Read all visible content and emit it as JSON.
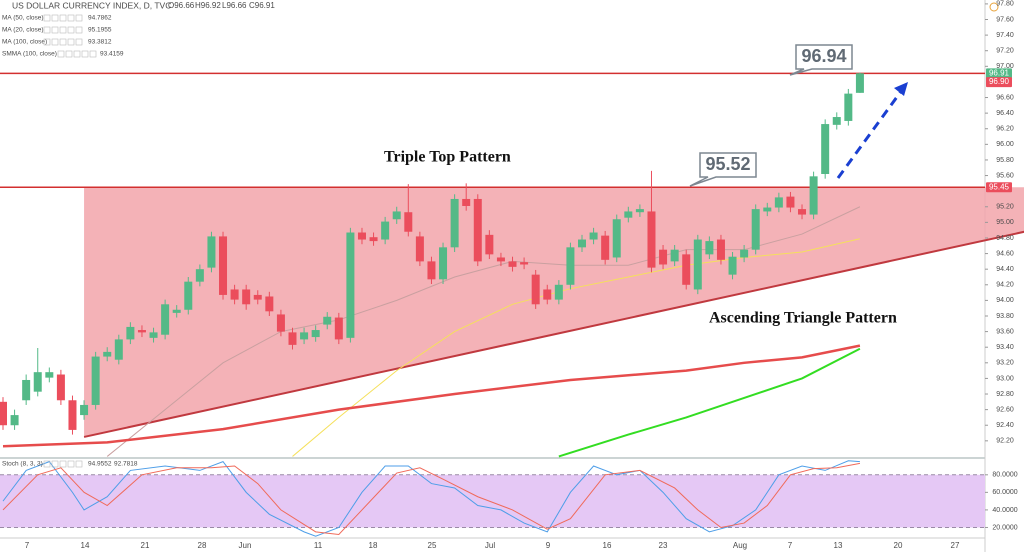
{
  "chart_data": {
    "type": "candlestick",
    "title": "US DOLLAR CURRENCY INDEX, D, TVC",
    "ohlc_labels": [
      {
        "value": 96.66,
        "label": "O96.66"
      },
      {
        "value": 96.92,
        "label": "H96.92"
      },
      {
        "value": 96.66,
        "label": "L96.66"
      },
      {
        "value": 96.91,
        "label": "C96.91"
      }
    ],
    "up_color": "#53b987",
    "down_color": "#eb4d5c",
    "open": [
      92.7,
      92.4,
      92.72,
      92.83,
      93.01,
      93.05,
      92.72,
      92.53,
      92.66,
      93.28,
      93.24,
      93.5,
      93.62,
      93.52,
      93.56,
      93.84,
      93.88,
      94.24,
      94.42,
      94.82,
      94.14,
      94.14,
      94.07,
      94.05,
      93.82,
      93.59,
      93.5,
      93.53,
      93.69,
      93.78,
      93.52,
      94.87,
      94.81,
      94.78,
      95.04,
      95.13,
      94.82,
      94.5,
      94.27,
      94.68,
      95.3,
      95.3,
      94.84,
      94.55,
      94.5,
      94.49,
      94.33,
      94.14,
      94.01,
      94.2,
      94.68,
      94.78,
      94.83,
      94.55,
      95.06,
      95.13,
      95.14,
      94.65,
      94.5,
      94.59,
      94.14,
      94.59,
      94.78,
      94.33,
      94.55,
      94.65,
      95.14,
      95.19,
      95.33,
      95.17,
      95.1,
      95.62,
      96.25,
      96.3,
      96.66
    ],
    "high": [
      92.76,
      92.6,
      93.05,
      93.39,
      93.14,
      93.11,
      92.78,
      92.72,
      93.34,
      93.4,
      93.56,
      93.72,
      93.68,
      93.65,
      94.01,
      93.94,
      94.3,
      94.46,
      94.88,
      94.88,
      94.2,
      94.2,
      94.13,
      94.11,
      93.88,
      93.65,
      93.65,
      93.68,
      93.85,
      93.84,
      94.93,
      94.93,
      94.87,
      95.07,
      95.2,
      95.49,
      94.88,
      94.56,
      94.74,
      95.36,
      95.5,
      95.36,
      94.9,
      94.61,
      94.56,
      94.55,
      94.39,
      94.2,
      94.26,
      94.74,
      94.84,
      94.93,
      94.89,
      95.1,
      95.2,
      95.23,
      95.66,
      94.71,
      94.71,
      94.65,
      94.84,
      94.82,
      94.84,
      94.62,
      94.71,
      95.23,
      95.25,
      95.38,
      95.39,
      95.23,
      95.65,
      96.32,
      96.41,
      96.71,
      96.92
    ],
    "low": [
      92.34,
      92.34,
      92.66,
      92.77,
      92.95,
      92.66,
      92.28,
      92.47,
      92.6,
      93.22,
      93.18,
      93.44,
      93.53,
      93.46,
      93.5,
      93.78,
      93.82,
      94.18,
      94.36,
      94.01,
      93.95,
      93.88,
      93.95,
      93.8,
      93.54,
      93.37,
      93.44,
      93.47,
      93.63,
      93.44,
      93.46,
      94.72,
      94.7,
      94.72,
      94.98,
      94.82,
      94.44,
      94.21,
      94.21,
      94.62,
      95.15,
      94.44,
      94.53,
      94.44,
      94.37,
      94.4,
      93.89,
      93.95,
      93.95,
      94.14,
      94.62,
      94.72,
      94.46,
      94.49,
      95.0,
      95.07,
      94.36,
      94.4,
      94.44,
      94.14,
      94.08,
      94.53,
      94.46,
      94.27,
      94.49,
      94.59,
      95.08,
      95.13,
      95.13,
      95.04,
      95.04,
      95.56,
      96.19,
      96.24,
      96.66
    ],
    "close": [
      92.4,
      92.53,
      92.98,
      93.08,
      93.08,
      92.72,
      92.34,
      92.66,
      93.28,
      93.34,
      93.5,
      93.66,
      93.59,
      93.59,
      93.95,
      93.88,
      94.24,
      94.4,
      94.82,
      94.07,
      94.01,
      93.95,
      94.01,
      93.86,
      93.6,
      93.43,
      93.59,
      93.62,
      93.79,
      93.5,
      94.87,
      94.78,
      94.76,
      95.01,
      95.14,
      94.88,
      94.5,
      94.27,
      94.68,
      95.3,
      95.21,
      94.5,
      94.59,
      94.5,
      94.43,
      94.46,
      93.95,
      94.01,
      94.2,
      94.68,
      94.78,
      94.87,
      94.52,
      95.04,
      95.14,
      95.17,
      94.42,
      94.46,
      94.65,
      94.2,
      94.78,
      94.76,
      94.52,
      94.56,
      94.65,
      95.17,
      95.19,
      95.32,
      95.19,
      95.1,
      95.59,
      96.26,
      96.35,
      96.65,
      96.91
    ],
    "ylim": [
      91.98,
      97.85
    ],
    "yticks": [
      {
        "value": 97.8,
        "label": "97.80"
      },
      {
        "value": 97.6,
        "label": "97.60"
      },
      {
        "value": 97.4,
        "label": "97.40"
      },
      {
        "value": 97.2,
        "label": "97.20"
      },
      {
        "value": 97.0,
        "label": "97.00"
      },
      {
        "value": 96.6,
        "label": "96.60"
      },
      {
        "value": 96.4,
        "label": "96.40"
      },
      {
        "value": 96.2,
        "label": "96.20"
      },
      {
        "value": 96.0,
        "label": "96.00"
      },
      {
        "value": 95.8,
        "label": "95.80"
      },
      {
        "value": 95.6,
        "label": "95.60"
      },
      {
        "value": 95.2,
        "label": "95.20"
      },
      {
        "value": 95.0,
        "label": "95.00"
      },
      {
        "value": 94.8,
        "label": "94.80"
      },
      {
        "value": 94.6,
        "label": "94.60"
      },
      {
        "value": 94.4,
        "label": "94.40"
      },
      {
        "value": 94.2,
        "label": "94.20"
      },
      {
        "value": 94.0,
        "label": "94.00"
      },
      {
        "value": 93.8,
        "label": "93.80"
      },
      {
        "value": 93.6,
        "label": "93.60"
      },
      {
        "value": 93.4,
        "label": "93.40"
      },
      {
        "value": 93.2,
        "label": "93.20"
      },
      {
        "value": 93.0,
        "label": "93.00"
      },
      {
        "value": 92.8,
        "label": "92.80"
      },
      {
        "value": 92.6,
        "label": "92.60"
      },
      {
        "value": 92.4,
        "label": "92.40"
      },
      {
        "value": 92.2,
        "label": "92.20"
      }
    ],
    "price_tags": [
      {
        "value": 96.91,
        "label": "96.91",
        "color": "#53b987"
      },
      {
        "value": 96.9,
        "label": "96.90",
        "color": "#eb4d5c"
      },
      {
        "value": 95.45,
        "label": "95.45",
        "color": "#eb4d5c"
      }
    ],
    "levels": [
      96.91,
      95.45
    ],
    "level_color": "#d32f2f",
    "triangle": {
      "x": [
        8,
        89.2
      ],
      "lower": [
        92.25,
        94.88
      ],
      "upper": 95.45,
      "fill": "#f2a5aa",
      "line_color": "#c0393f"
    },
    "xtick_labels": [
      "7",
      "14",
      "21",
      "28",
      "Jun",
      "11",
      "18",
      "25",
      "Jul",
      "9",
      "16",
      "23",
      "Aug",
      "7",
      "13",
      "20",
      "27"
    ],
    "indicators": [
      {
        "name": "MA (50, close)",
        "value": 94.7862,
        "color": "#f5e05b",
        "width": 1,
        "x": [
          26,
          30,
          35,
          40,
          45,
          50,
          55,
          60,
          65,
          70,
          75
        ],
        "values": [
          92.0,
          92.5,
          93.1,
          93.6,
          93.95,
          94.15,
          94.3,
          94.45,
          94.55,
          94.62,
          94.79
        ]
      },
      {
        "name": "MA (20, close)",
        "value": 95.1955,
        "color": "#c9a0a0",
        "width": 1,
        "x": [
          10,
          15,
          20,
          25,
          30,
          35,
          40,
          45,
          50,
          55,
          60,
          65,
          70,
          75
        ],
        "values": [
          92.0,
          92.6,
          93.2,
          93.6,
          93.75,
          94.0,
          94.3,
          94.5,
          94.45,
          94.45,
          94.65,
          94.65,
          94.85,
          95.2
        ]
      },
      {
        "name": "MA (100, close)",
        "value": 93.3812,
        "color": "#33dd22",
        "width": 2,
        "x": [
          49,
          55,
          60,
          65,
          70,
          75
        ],
        "values": [
          92.0,
          92.28,
          92.5,
          92.75,
          93.0,
          93.38
        ]
      },
      {
        "name": "SMMA (100, close)",
        "value": 93.4159,
        "color": "#e64c4c",
        "width": 2.5,
        "x": [
          1,
          10,
          20,
          30,
          40,
          50,
          60,
          65,
          70,
          75
        ],
        "values": [
          92.13,
          92.18,
          92.35,
          92.6,
          92.8,
          92.98,
          93.1,
          93.2,
          93.27,
          93.42
        ]
      }
    ],
    "stochastic": {
      "name": "Stoch (8, 3, 3)",
      "ylim": [
        8,
        98
      ],
      "yticks": [
        {
          "value": 80,
          "label": "80.0000"
        },
        {
          "value": 60,
          "label": "60.0000"
        },
        {
          "value": 40,
          "label": "40.0000"
        },
        {
          "value": 20,
          "label": "20.0000"
        }
      ],
      "band": [
        20,
        80
      ],
      "band_color": "#e5c8f5",
      "series": [
        {
          "value": 94.9552,
          "color": "#4e9ee8",
          "x": [
            1,
            3,
            5,
            7,
            8,
            10,
            12,
            15,
            18,
            20,
            22,
            24,
            27,
            28,
            30,
            32,
            34,
            36,
            38,
            40,
            42,
            44,
            46,
            48,
            50,
            52,
            54,
            56,
            58,
            60,
            62,
            64,
            66,
            68,
            70,
            72,
            74,
            75
          ],
          "values": [
            50,
            85,
            95,
            60,
            40,
            55,
            85,
            90,
            85,
            95,
            60,
            35,
            15,
            10,
            20,
            60,
            90,
            90,
            70,
            65,
            45,
            40,
            25,
            15,
            60,
            90,
            80,
            85,
            60,
            30,
            15,
            22,
            40,
            80,
            90,
            85,
            96,
            95
          ]
        },
        {
          "value": 92.7818,
          "color": "#f06a5a",
          "x": [
            1,
            4,
            6,
            8,
            10,
            13,
            16,
            19,
            21,
            23,
            25,
            28,
            30,
            32,
            35,
            37,
            39,
            42,
            45,
            48,
            50,
            53,
            56,
            59,
            61,
            63,
            65,
            67,
            69,
            71,
            73,
            75
          ],
          "values": [
            40,
            80,
            88,
            60,
            45,
            80,
            88,
            88,
            90,
            70,
            40,
            15,
            12,
            40,
            82,
            88,
            75,
            55,
            40,
            18,
            30,
            80,
            85,
            65,
            40,
            20,
            25,
            45,
            80,
            87,
            88,
            93
          ]
        }
      ]
    },
    "annotations": [
      "Triple Top Pattern",
      "Ascending Triangle Pattern"
    ],
    "callouts": [
      96.94,
      95.52
    ]
  }
}
